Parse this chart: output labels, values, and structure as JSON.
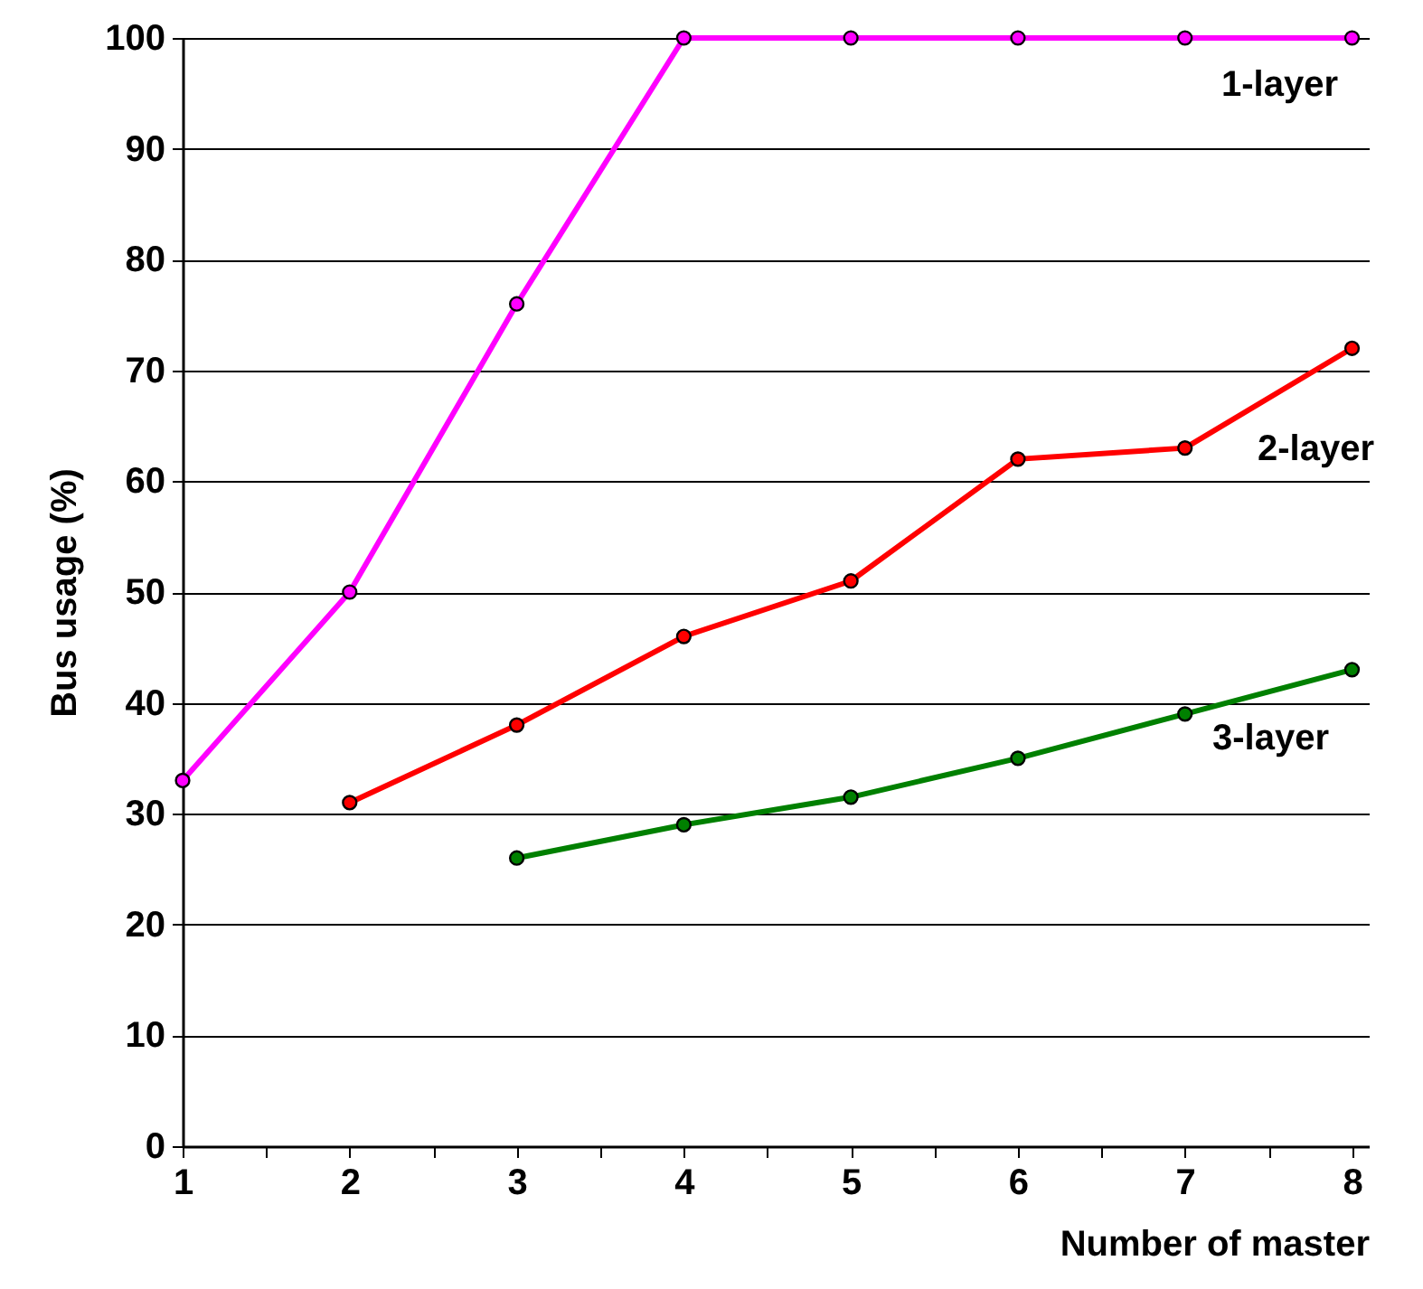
{
  "chart_data": {
    "type": "line",
    "xlabel": "Number of master",
    "ylabel": "Bus usage (%)",
    "xlim": [
      1,
      8.1
    ],
    "xticks": [
      1,
      {
        "value": 1.5,
        "label": null
      },
      2,
      {
        "value": 2.5,
        "label": null
      },
      3,
      {
        "value": 3.5,
        "label": null
      },
      4,
      {
        "value": 4.5,
        "label": null
      },
      5,
      {
        "value": 5.5,
        "label": null
      },
      6,
      {
        "value": 6.5,
        "label": null
      },
      7,
      {
        "value": 7.5,
        "label": null
      },
      8
    ],
    "ylim": [
      0,
      100
    ],
    "yticks": [
      0,
      10,
      20,
      30,
      40,
      50,
      60,
      70,
      80,
      90,
      100
    ],
    "grid": "y",
    "marker": "circle",
    "series": [
      {
        "name": "1-layer",
        "color": "#ff00ff",
        "x": [
          1,
          2,
          3,
          4,
          5,
          6,
          7,
          8
        ],
        "values": [
          33,
          50,
          76,
          100,
          100,
          100,
          100,
          100
        ]
      },
      {
        "name": "2-layer",
        "color": "#ff0000",
        "x": [
          2,
          3,
          4,
          5,
          6,
          7,
          8
        ],
        "values": [
          31,
          38,
          46,
          51,
          62,
          63,
          72
        ]
      },
      {
        "name": "3-layer",
        "color": "#008000",
        "x": [
          3,
          4,
          5,
          6,
          7,
          8
        ],
        "values": [
          26,
          29,
          31.5,
          35,
          39,
          43
        ]
      }
    ]
  }
}
